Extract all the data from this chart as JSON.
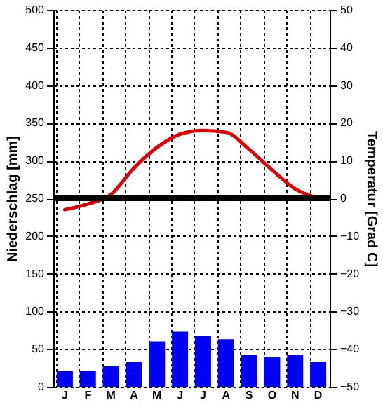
{
  "chart_data": {
    "type": "bar",
    "categories": [
      "J",
      "F",
      "M",
      "A",
      "M",
      "J",
      "J",
      "A",
      "S",
      "O",
      "N",
      "D"
    ],
    "series": [
      {
        "color": "#0000ff",
        "values": [
          21,
          21,
          27,
          33,
          60,
          73,
          67,
          63,
          42,
          39,
          42,
          33
        ]
      },
      {
        "type": "line",
        "axis": "y2",
        "color": "#e00000",
        "values": [
          -3,
          -1.5,
          1,
          8,
          13.5,
          17,
          18,
          17.5,
          13,
          7.5,
          2.5,
          0
        ]
      }
    ],
    "ylabel": "Niederschlag [mm]",
    "y2label": "Temperatur [Grad C]",
    "ylim": [
      0,
      500
    ],
    "yticks": [
      0,
      50,
      100,
      150,
      200,
      250,
      300,
      350,
      400,
      450,
      500
    ],
    "y2lim": [
      -50,
      50
    ],
    "y2ticks": [
      -50,
      -40,
      -30,
      -20,
      -10,
      0,
      10,
      20,
      30,
      40,
      50
    ],
    "ref_lines": [
      {
        "axis": "y2",
        "value": 0,
        "color": "#000000"
      }
    ],
    "grid": true
  }
}
